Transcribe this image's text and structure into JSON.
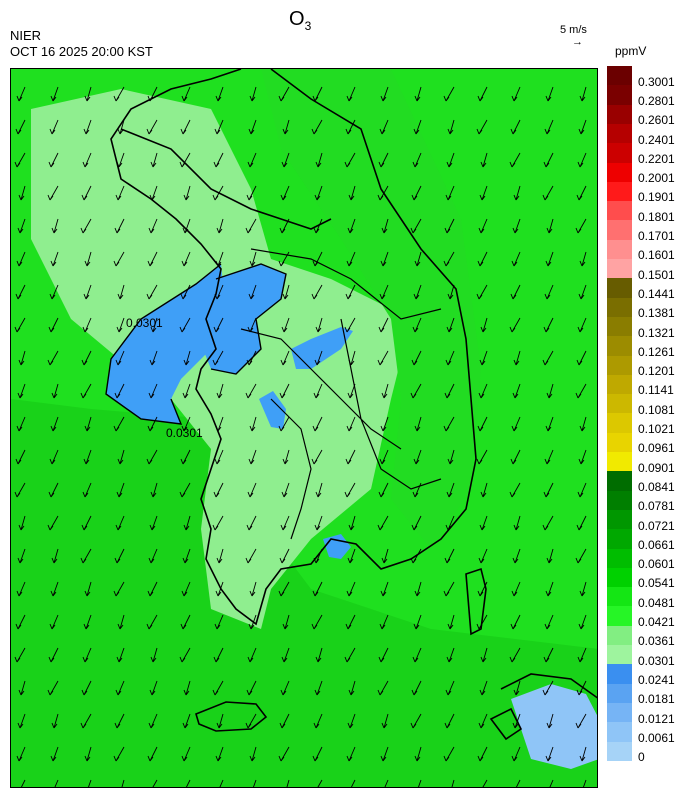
{
  "header": {
    "agency": "NIER",
    "datetime": "OCT 16 2025 20:00 KST",
    "title_main": "O",
    "title_sub": "3",
    "wind_reference": "5 m/s",
    "wind_arrow": "→",
    "unit": "ppmV"
  },
  "contour_label": "0.0301",
  "colors": {
    "map_base": "#1fe01f",
    "light_green": "#8fee8f",
    "mid_green": "#19d219",
    "blue_zone": "#3f9ff7",
    "coast_line": "#000000"
  },
  "colorbar": {
    "labels": [
      "0.3001",
      "0.2801",
      "0.2601",
      "0.2401",
      "0.2201",
      "0.2001",
      "0.1901",
      "0.1801",
      "0.1701",
      "0.1601",
      "0.1501",
      "0.1441",
      "0.1381",
      "0.1321",
      "0.1261",
      "0.1201",
      "0.1141",
      "0.1081",
      "0.1021",
      "0.0961",
      "0.0901",
      "0.0841",
      "0.0781",
      "0.0721",
      "0.0661",
      "0.0601",
      "0.0541",
      "0.0481",
      "0.0421",
      "0.0361",
      "0.0301",
      "0.0241",
      "0.0181",
      "0.0121",
      "0.0061",
      "0"
    ],
    "colors": [
      "#6b0000",
      "#7a0000",
      "#990000",
      "#b50000",
      "#cc0000",
      "#ee0000",
      "#ff1a1a",
      "#ff4d4d",
      "#ff7070",
      "#ff8f8f",
      "#ffa3a3",
      "#675c00",
      "#7a6e00",
      "#8a7d00",
      "#9c8c00",
      "#ad9a00",
      "#bfa900",
      "#ccb800",
      "#dcc800",
      "#e8d400",
      "#f1ea00",
      "#006d00",
      "#007f00",
      "#009700",
      "#00a800",
      "#00bd00",
      "#00d100",
      "#14e614",
      "#26f526",
      "#82ee82",
      "#9ef49e",
      "#3a8ff0",
      "#5aa3f2",
      "#76b4f5",
      "#8fc5f7",
      "#a6d3f7"
    ]
  }
}
